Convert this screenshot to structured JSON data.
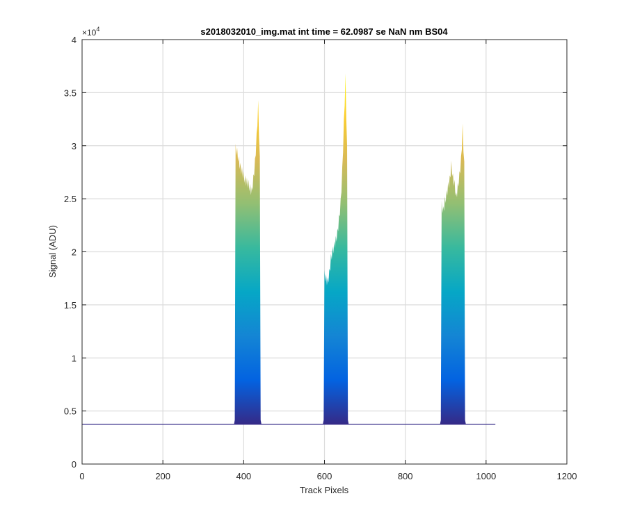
{
  "chart_data": {
    "type": "area",
    "title": "s2018032010_img.mat int time = 62.0987 se  NaN nm BS04",
    "xlabel": "Track Pixels",
    "ylabel": "Signal (ADU)",
    "xlim": [
      0,
      1200
    ],
    "ylim": [
      0,
      40000
    ],
    "x_ticks": [
      0,
      200,
      400,
      600,
      800,
      1000,
      1200
    ],
    "y_ticks": [
      0,
      5000,
      10000,
      15000,
      20000,
      25000,
      30000,
      35000,
      40000
    ],
    "x_tick_labels": [
      "0",
      "200",
      "400",
      "600",
      "800",
      "1000",
      "1200"
    ],
    "y_tick_labels": [
      "0",
      "0.5",
      "1",
      "1.5",
      "2",
      "2.5",
      "3",
      "3.5",
      "4"
    ],
    "y_exponent_label": "×10",
    "y_exponent_power": "4",
    "grid": true,
    "colormap": [
      "#352a87",
      "#0363e1",
      "#1485d4",
      "#06a7c6",
      "#38b99e",
      "#92bf73",
      "#d9ba56",
      "#fcce2e",
      "#f9fb0e"
    ],
    "baseline": 3750,
    "x_range": [
      0,
      1023
    ],
    "peaks": [
      {
        "x": [
          380,
          384,
          388,
          392,
          396,
          400,
          404,
          408,
          412,
          416,
          420,
          424,
          428,
          432,
          436,
          440
        ],
        "y": [
          30200,
          29800,
          29000,
          28400,
          28000,
          27600,
          27200,
          27000,
          26800,
          26400,
          26100,
          27300,
          28800,
          31200,
          34300,
          29000
        ]
      },
      {
        "x": [
          600,
          604,
          608,
          612,
          616,
          620,
          624,
          628,
          632,
          636,
          640,
          644,
          648,
          652,
          656
        ],
        "y": [
          18300,
          17900,
          17600,
          18400,
          19800,
          20500,
          21000,
          21500,
          22200,
          23500,
          25000,
          28000,
          32500,
          36800,
          30000
        ]
      },
      {
        "x": [
          890,
          894,
          898,
          902,
          906,
          910,
          914,
          918,
          922,
          926,
          930,
          934,
          938,
          942,
          946
        ],
        "y": [
          24800,
          24300,
          25200,
          25800,
          26600,
          27200,
          28600,
          27400,
          26800,
          25600,
          26500,
          27600,
          29000,
          32100,
          28500
        ]
      }
    ]
  }
}
